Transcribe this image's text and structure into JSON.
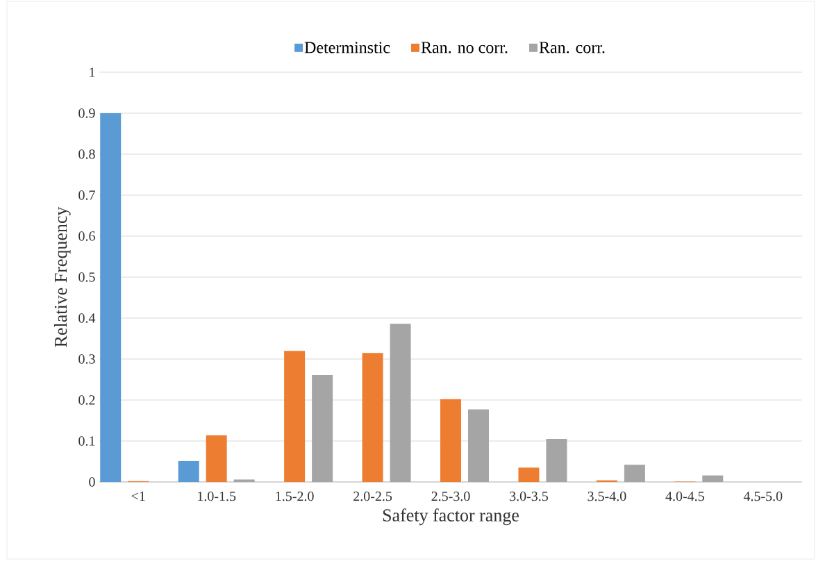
{
  "chart_data": {
    "type": "bar",
    "xlabel": "Safety factor range",
    "ylabel": "Relative Frequency",
    "categories": [
      "<1",
      "1.0-1.5",
      "1.5-2.0",
      "2.0-2.5",
      "2.5-3.0",
      "3.0-3.5",
      "3.5-4.0",
      "4.0-4.5",
      "4.5-5.0"
    ],
    "series": [
      {
        "name": "Determinstic",
        "color": "#5b9bd5",
        "values": [
          0.9,
          0.051,
          0,
          0,
          0,
          0,
          0,
          0,
          0
        ]
      },
      {
        "name": "Ran. no corr.",
        "color": "#ed7d31",
        "values": [
          0.002,
          0.114,
          0.32,
          0.315,
          0.202,
          0.035,
          0.004,
          0.001,
          0
        ]
      },
      {
        "name": "Ran. corr.",
        "color": "#a5a5a5",
        "values": [
          0,
          0.006,
          0.261,
          0.386,
          0.177,
          0.105,
          0.042,
          0.016,
          0
        ]
      }
    ],
    "ylim": [
      0,
      1
    ],
    "yticks": [
      0,
      0.1,
      0.2,
      0.3,
      0.4,
      0.5,
      0.6,
      0.7,
      0.8,
      0.9,
      1
    ],
    "grid": "y",
    "legend": "top"
  }
}
